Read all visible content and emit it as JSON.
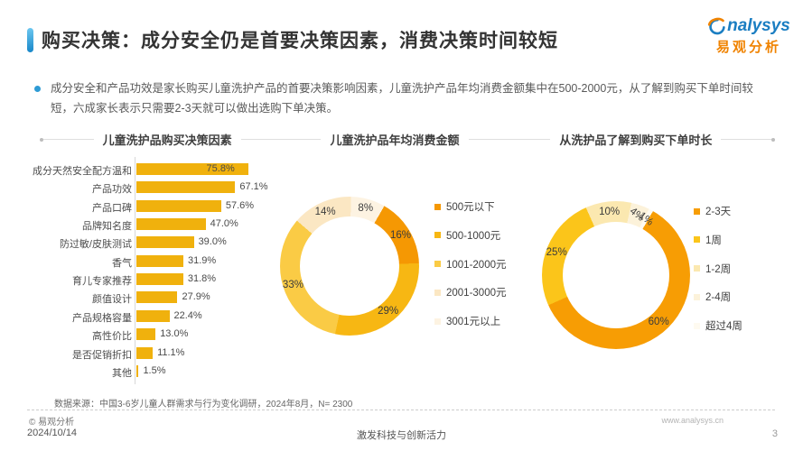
{
  "header": {
    "title": "购买决策：成分安全仍是首要决策因素，消费决策时间较短",
    "logo_en": "nalysys",
    "logo_cn": "易观分析"
  },
  "summary": {
    "text": "成分安全和产品功效是家长购买儿童洗护产品的首要决策影响因素，儿童洗护产品年均消费金额集中在500-2000元，从了解到购买下单时间较短，六成家长表示只需要2-3天就可以做出选购下单决策。"
  },
  "theme": {
    "accent_blue": "#2E9BD5",
    "bar_color": "#F0B10D",
    "logo_blue": "#1B7EC2",
    "logo_orange": "#F08300"
  },
  "chart_data": [
    {
      "type": "bar",
      "orientation": "horizontal",
      "title": "儿童洗护品购买决策因素",
      "unit": "%",
      "xlim": [
        0,
        80
      ],
      "grid": false,
      "bar_color": "#F0B10D",
      "categories": [
        "成分天然安全配方温和",
        "产品功效",
        "产品口碑",
        "品牌知名度",
        "防过敏/皮肤测试",
        "香气",
        "育儿专家推荐",
        "颜值设计",
        "产品规格容量",
        "高性价比",
        "是否促销折扣",
        "其他"
      ],
      "values": [
        75.8,
        67.1,
        57.6,
        47.0,
        39.0,
        31.9,
        31.8,
        27.9,
        22.4,
        13.0,
        11.1,
        1.5
      ],
      "value_labels": [
        "75.8%",
        "67.1%",
        "57.6%",
        "47.0%",
        "39.0%",
        "31.9%",
        "31.8%",
        "27.9%",
        "22.4%",
        "13.0%",
        "11.1%",
        "1.5%"
      ]
    },
    {
      "type": "pie",
      "subtype": "donut",
      "title": "儿童洗护品年均消费金额",
      "legend_position": "right",
      "start_angle_deg": 30,
      "segments": [
        {
          "label": "500元以下",
          "value": 16,
          "display": "16%",
          "color": "#F59803"
        },
        {
          "label": "500-1000元",
          "value": 29,
          "display": "29%",
          "color": "#F7B713"
        },
        {
          "label": "1001-2000元",
          "value": 33,
          "display": "33%",
          "color": "#FACB45"
        },
        {
          "label": "2001-3000元",
          "value": 14,
          "display": "14%",
          "color": "#FBE7C3"
        },
        {
          "label": "3001元以上",
          "value": 8,
          "display": "8%",
          "color": "#FDF3E2"
        }
      ]
    },
    {
      "type": "pie",
      "subtype": "donut",
      "title": "从洗护品了解到购买下单时长",
      "legend_position": "right",
      "start_angle_deg": 30,
      "segments": [
        {
          "label": "2-3天",
          "value": 60,
          "display": "60%",
          "color": "#F79D04"
        },
        {
          "label": "1周",
          "value": 25,
          "display": "25%",
          "color": "#FBC51A"
        },
        {
          "label": "1-2周",
          "value": 10,
          "display": "10%",
          "color": "#FBE8B0"
        },
        {
          "label": "2-4周",
          "value": 4,
          "display": "4%",
          "color": "#FCF2DA"
        },
        {
          "label": "超过4周",
          "value": 1,
          "display": "1%",
          "color": "#FEFAF0"
        }
      ]
    }
  ],
  "source_note": "数据来源：中国3-6岁儿童人群需求与行为变化调研，2024年8月，N= 2300",
  "footer": {
    "copyright": "© 易观分析",
    "website": "www.analysys.cn",
    "date": "2024/10/14",
    "center": "激发科技与创新活力",
    "page_number": "3"
  }
}
